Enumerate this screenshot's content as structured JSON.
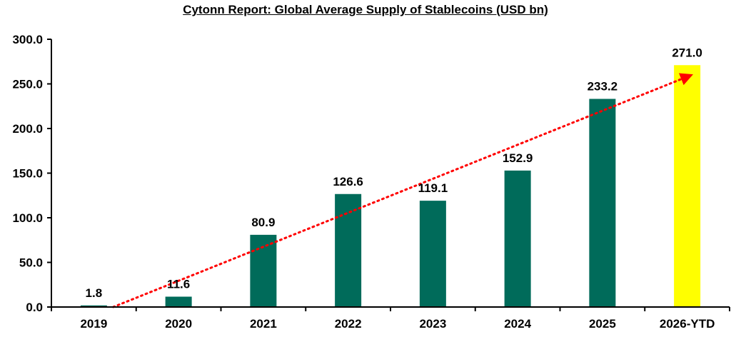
{
  "chart_data": {
    "type": "bar",
    "title": "Cytonn Report: Global Average Supply of Stablecoins (USD bn)",
    "xlabel": "",
    "ylabel": "",
    "categories": [
      "2019",
      "2020",
      "2021",
      "2022",
      "2023",
      "2024",
      "2025",
      "2026-YTD"
    ],
    "values": [
      1.8,
      11.6,
      80.9,
      126.6,
      119.1,
      152.9,
      233.2,
      271.0
    ],
    "data_labels": [
      "1.8",
      "11.6",
      "80.9",
      "126.6",
      "119.1",
      "152.9",
      "233.2",
      "271.0"
    ],
    "ylim": [
      0,
      300
    ],
    "yticks": [
      0,
      50,
      100,
      150,
      200,
      250,
      300
    ],
    "ytick_labels": [
      "0.0",
      "50.0",
      "100.0",
      "150.0",
      "200.0",
      "250.0",
      "300.0"
    ],
    "grid": false,
    "legend": "none",
    "colors": {
      "bar": "#006B5A",
      "highlight_bar": "#FFFF00",
      "trendline": "#FF0000",
      "axis": "#000000"
    },
    "highlight_category": "2026-YTD",
    "trendline": {
      "style": "dotted",
      "kind": "linear",
      "arrow_end": true
    }
  }
}
